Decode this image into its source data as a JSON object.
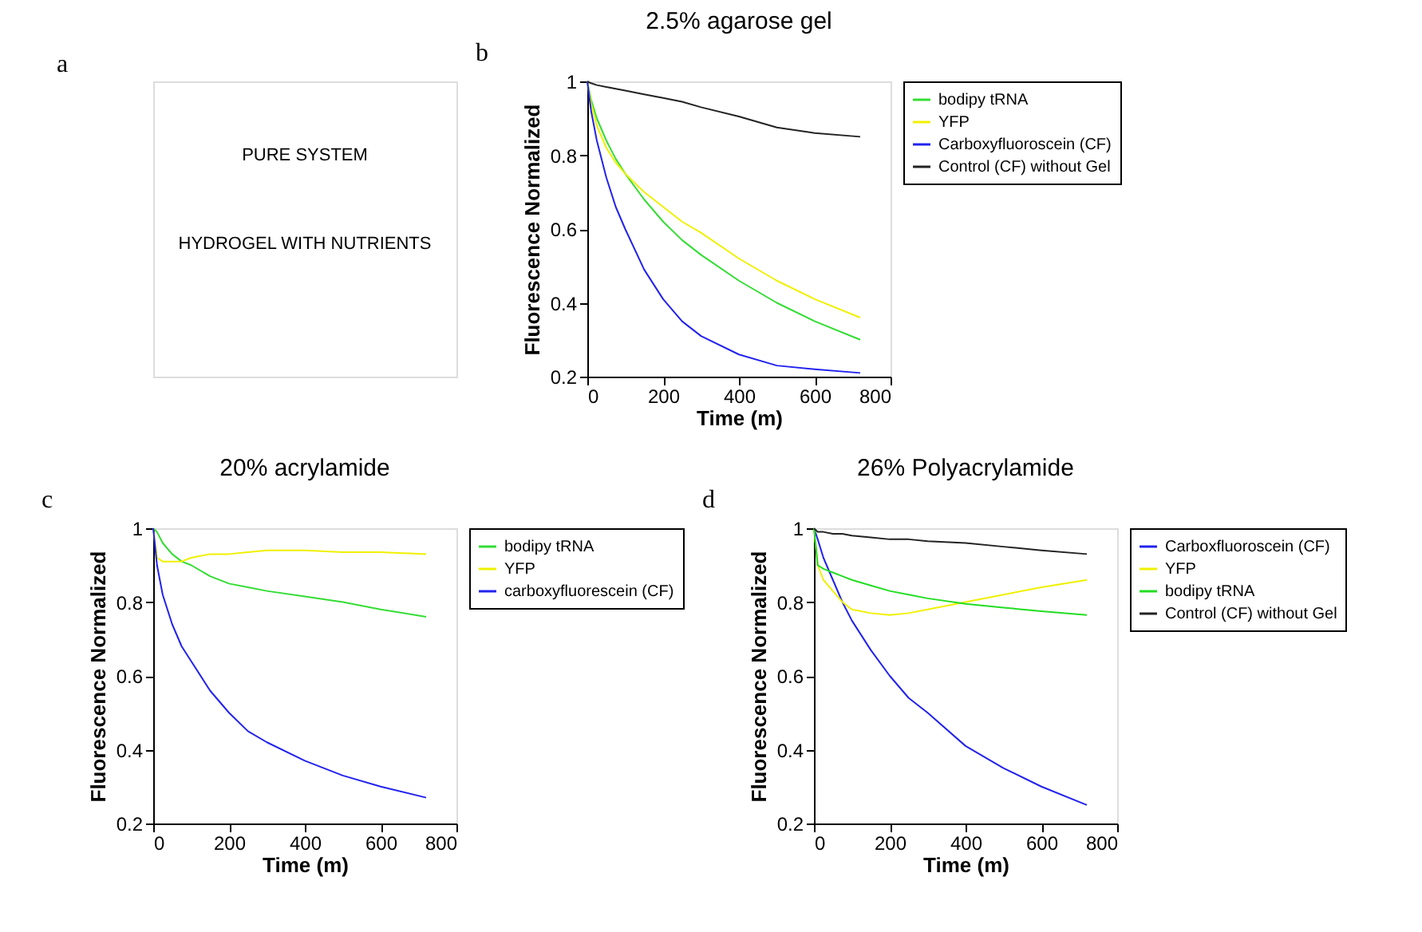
{
  "chart_data": [
    {
      "type": "other",
      "annotations": [
        "a",
        "PURE SYSTEM",
        "HYDROGEL WITH NUTRIENTS"
      ]
    },
    {
      "type": "line",
      "title": "2.5% agarose gel",
      "xlabel": "Time (m)",
      "ylabel": "Fluorescence Normalized",
      "annotations": [
        "b"
      ],
      "x": [
        0,
        10,
        25,
        50,
        75,
        100,
        150,
        200,
        250,
        300,
        400,
        500,
        600,
        720
      ],
      "xlim": [
        0,
        800
      ],
      "xticks": [
        0,
        200,
        400,
        600,
        800
      ],
      "ylim": [
        0.2,
        1
      ],
      "yticks": [
        0.2,
        0.4,
        0.6,
        0.8,
        1
      ],
      "grid": false,
      "legend": "right",
      "series": [
        {
          "name": "bodipy tRNA",
          "color": "#33dd33",
          "values": [
            1,
            0.95,
            0.9,
            0.84,
            0.79,
            0.75,
            0.68,
            0.62,
            0.57,
            0.53,
            0.46,
            0.4,
            0.35,
            0.3
          ]
        },
        {
          "name": "YFP",
          "color": "#f0f000",
          "values": [
            1,
            0.94,
            0.88,
            0.82,
            0.78,
            0.75,
            0.7,
            0.66,
            0.62,
            0.59,
            0.52,
            0.46,
            0.41,
            0.36
          ]
        },
        {
          "name": "Carboxyfluoroscein (CF)",
          "color": "#2222ee",
          "values": [
            1,
            0.92,
            0.84,
            0.74,
            0.66,
            0.6,
            0.49,
            0.41,
            0.35,
            0.31,
            0.26,
            0.23,
            0.22,
            0.21
          ]
        },
        {
          "name": "Control (CF) without Gel",
          "color": "#222222",
          "values": [
            1,
            0.995,
            0.99,
            0.985,
            0.98,
            0.975,
            0.965,
            0.955,
            0.945,
            0.93,
            0.905,
            0.875,
            0.86,
            0.85
          ]
        }
      ]
    },
    {
      "type": "line",
      "title": "20% acrylamide",
      "xlabel": "Time (m)",
      "ylabel": "Fluorescence Normalized",
      "annotations": [
        "c"
      ],
      "x": [
        0,
        10,
        25,
        50,
        75,
        100,
        150,
        200,
        250,
        300,
        400,
        500,
        600,
        720
      ],
      "xlim": [
        0,
        800
      ],
      "xticks": [
        0,
        200,
        400,
        600,
        800
      ],
      "ylim": [
        0.2,
        1
      ],
      "yticks": [
        0.2,
        0.4,
        0.6,
        0.8,
        1
      ],
      "grid": false,
      "legend": "right",
      "series": [
        {
          "name": "bodipy tRNA",
          "color": "#33dd33",
          "values": [
            1,
            0.99,
            0.96,
            0.93,
            0.91,
            0.9,
            0.87,
            0.85,
            0.84,
            0.83,
            0.815,
            0.8,
            0.78,
            0.76
          ]
        },
        {
          "name": "YFP",
          "color": "#f0f000",
          "values": [
            1,
            0.92,
            0.91,
            0.91,
            0.91,
            0.92,
            0.93,
            0.93,
            0.935,
            0.94,
            0.94,
            0.935,
            0.935,
            0.93
          ]
        },
        {
          "name": "carboxyfluorescein (CF)",
          "color": "#2222ee",
          "values": [
            1,
            0.9,
            0.82,
            0.74,
            0.68,
            0.64,
            0.56,
            0.5,
            0.45,
            0.42,
            0.37,
            0.33,
            0.3,
            0.27
          ]
        }
      ]
    },
    {
      "type": "line",
      "title": "26% Polyacrylamide",
      "xlabel": "Time (m)",
      "ylabel": "Fluorescence Normalized",
      "annotations": [
        "d"
      ],
      "x": [
        0,
        10,
        25,
        50,
        75,
        100,
        150,
        200,
        250,
        300,
        400,
        500,
        600,
        720
      ],
      "xlim": [
        0,
        800
      ],
      "xticks": [
        0,
        200,
        400,
        600,
        800
      ],
      "ylim": [
        0.2,
        1
      ],
      "yticks": [
        0.2,
        0.4,
        0.6,
        0.8,
        1
      ],
      "grid": false,
      "legend": "right",
      "series": [
        {
          "name": "Carboxfluoroscein (CF)",
          "color": "#2222ee",
          "values": [
            1,
            0.97,
            0.92,
            0.86,
            0.8,
            0.75,
            0.67,
            0.6,
            0.54,
            0.5,
            0.41,
            0.35,
            0.3,
            0.25
          ]
        },
        {
          "name": "YFP",
          "color": "#f0f000",
          "values": [
            1,
            0.9,
            0.86,
            0.83,
            0.8,
            0.78,
            0.77,
            0.765,
            0.77,
            0.78,
            0.8,
            0.82,
            0.84,
            0.86
          ]
        },
        {
          "name": "bodipy tRNA",
          "color": "#22dd22",
          "values": [
            1,
            0.9,
            0.89,
            0.88,
            0.87,
            0.86,
            0.845,
            0.83,
            0.82,
            0.81,
            0.795,
            0.785,
            0.775,
            0.765
          ]
        },
        {
          "name": "Control (CF) without Gel",
          "color": "#222222",
          "values": [
            1,
            0.99,
            0.99,
            0.985,
            0.985,
            0.98,
            0.975,
            0.97,
            0.97,
            0.965,
            0.96,
            0.95,
            0.94,
            0.93
          ]
        }
      ]
    }
  ]
}
